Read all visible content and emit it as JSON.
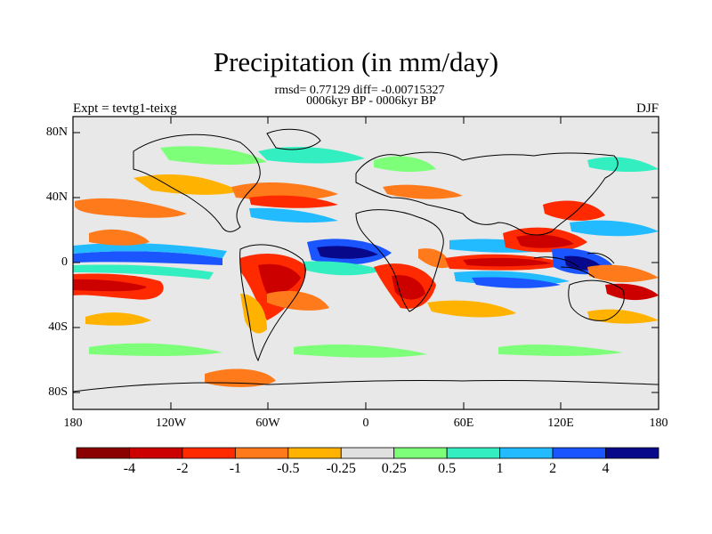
{
  "title": "Precipitation (in mm/day)",
  "stats_line": "rmsd= 0.77129 diff= -0.00715327",
  "period_line": "0006kyr BP - 0006kyr BP",
  "experiment": "Expt = tevtg1-teixg",
  "season": "DJF",
  "lat_labels": [
    "80N",
    "40N",
    "0",
    "40S",
    "80S"
  ],
  "lon_labels": [
    "180",
    "120W",
    "60W",
    "0",
    "60E",
    "120E",
    "180"
  ],
  "colorbar": {
    "colors": [
      "#8b0000",
      "#cd0000",
      "#ff2a00",
      "#ff7a1a",
      "#ffb300",
      "#e0e0e0",
      "#7dff7a",
      "#33eec0",
      "#22bbff",
      "#1a55ff",
      "#08088a"
    ],
    "labels": [
      "-4",
      "-2",
      "-1",
      "-0.5",
      "-0.25",
      "0.25",
      "0.5",
      "1",
      "2",
      "4"
    ]
  },
  "colors": {
    "background": "#e8e8e8",
    "coastline": "#000000"
  }
}
